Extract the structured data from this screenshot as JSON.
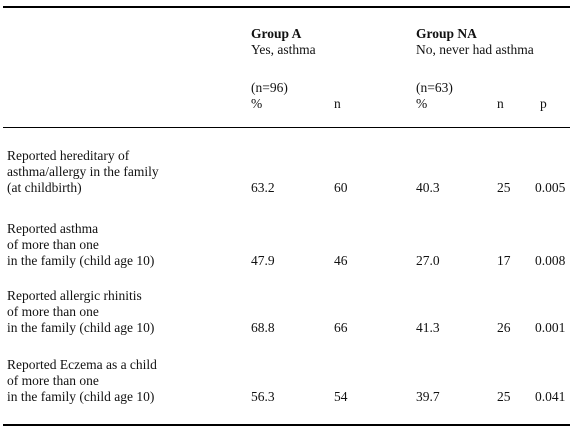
{
  "header": {
    "group_a": {
      "title": "Group A",
      "subtitle": "Yes, asthma",
      "n_total": "(n=96)",
      "pct": "%",
      "n": "n"
    },
    "group_na": {
      "title": "Group NA",
      "subtitle": "No, never had asthma",
      "n_total": "(n=63)",
      "pct": "%",
      "n": "n",
      "p": "p"
    }
  },
  "rows": [
    {
      "label": "Reported hereditary of\nasthma/allergy in the family\n(at childbirth)",
      "a_pct": "63.2",
      "a_n": "60",
      "na_pct": "40.3",
      "na_n": "25",
      "p": "0.005"
    },
    {
      "label": "Reported asthma\nof more than one\nin the family (child  age 10)",
      "a_pct": "47.9",
      "a_n": "46",
      "na_pct": "27.0",
      "na_n": "17",
      "p": "0.008"
    },
    {
      "label": "Reported allergic rhinitis\nof more than one\nin the family (child age 10)",
      "a_pct": "68.8",
      "a_n": "66",
      "na_pct": "41.3",
      "na_n": "26",
      "p": "0.001"
    },
    {
      "label": "Reported Eczema as a child\nof more than one\nin the family (child age 10)",
      "a_pct": "56.3",
      "a_n": "54",
      "na_pct": "39.7",
      "na_n": "25",
      "p": "0.041"
    }
  ]
}
